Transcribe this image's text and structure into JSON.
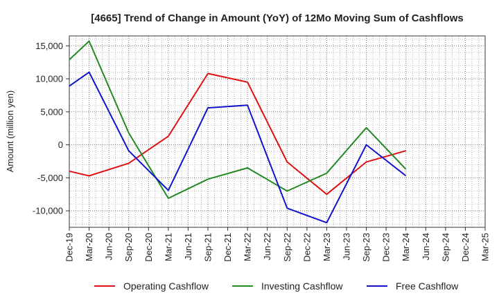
{
  "chart_data": {
    "type": "line",
    "title": "[4665]  Trend of Change in Amount (YoY) of 12Mo Moving Sum of Cashflows",
    "xlabel": "",
    "ylabel": "Amount (million yen)",
    "ylim": [
      -12500,
      16500
    ],
    "yticks": [
      15000,
      10000,
      5000,
      0,
      -5000,
      -10000
    ],
    "ytick_labels": [
      "15,000",
      "10,000",
      "5,000",
      "0",
      "-5,000",
      "-10,000"
    ],
    "grid": true,
    "legend_position": "bottom",
    "categories": [
      "Dec-19",
      "Mar-20",
      "Jun-20",
      "Sep-20",
      "Dec-20",
      "Mar-21",
      "Jun-21",
      "Sep-21",
      "Dec-21",
      "Mar-22",
      "Jun-22",
      "Sep-22",
      "Dec-22",
      "Mar-23",
      "Jun-23",
      "Sep-23",
      "Dec-23",
      "Mar-24",
      "Jun-24",
      "Sep-24",
      "Dec-24",
      "Mar-25"
    ],
    "series": [
      {
        "name": "Operating Cashflow",
        "color": "#dd1111",
        "values": [
          -4000,
          -4700,
          null,
          -2800,
          null,
          1300,
          null,
          10800,
          null,
          9500,
          null,
          -2600,
          null,
          -7500,
          null,
          -2600,
          null,
          -900,
          null,
          null,
          null,
          null
        ]
      },
      {
        "name": "Investing Cashflow",
        "color": "#228822",
        "values": [
          12900,
          15700,
          null,
          1800,
          null,
          -8100,
          null,
          -5200,
          null,
          -3500,
          null,
          -7000,
          null,
          -4300,
          null,
          2600,
          null,
          -3700,
          null,
          null,
          null,
          null
        ]
      },
      {
        "name": "Free Cashflow",
        "color": "#1111cc",
        "values": [
          8900,
          11000,
          null,
          -900,
          null,
          -6900,
          null,
          5600,
          null,
          6000,
          null,
          -9600,
          null,
          -11800,
          null,
          0,
          null,
          -4700,
          null,
          null,
          null,
          null
        ]
      }
    ]
  }
}
